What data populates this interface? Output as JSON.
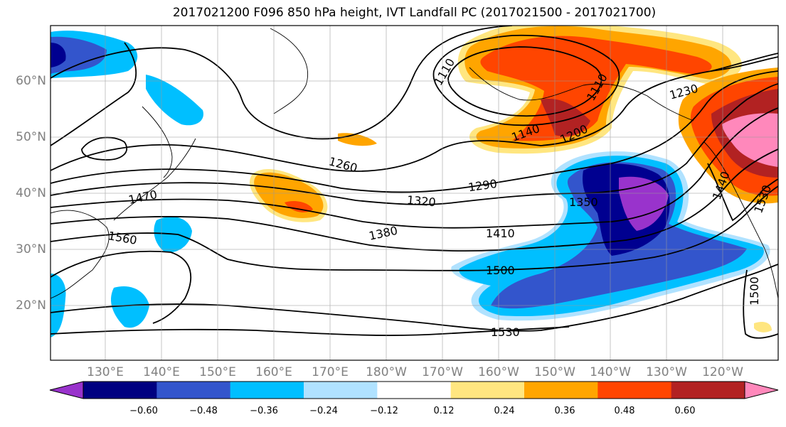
{
  "title": "2017021200 F096 850 hPa height, IVT Landfall PC (2017021500 - 2017021700)",
  "lat_ticks": [
    "60°N",
    "50°N",
    "40°N",
    "30°N",
    "20°N"
  ],
  "lon_ticks": [
    "130°E",
    "140°E",
    "150°E",
    "160°E",
    "170°E",
    "180°W",
    "170°W",
    "160°W",
    "150°W",
    "140°W",
    "130°W",
    "120°W"
  ],
  "contour_labels": [
    "1110",
    "1110",
    "1140",
    "1200",
    "1230",
    "1260",
    "1290",
    "1320",
    "1350",
    "1380",
    "1410",
    "1440",
    "1470",
    "1500",
    "1500",
    "1530",
    "1530",
    "1560"
  ],
  "colorbar": {
    "tick_labels": [
      "−0.60",
      "−0.48",
      "−0.36",
      "−0.24",
      "−0.12",
      "0.12",
      "0.24",
      "0.36",
      "0.48",
      "0.60"
    ],
    "colors": [
      "#9933cc",
      "#000080",
      "#3355cc",
      "#00bfff",
      "#b0e2ff",
      "#ffffff",
      "#ffe680",
      "#ffa500",
      "#ff4500",
      "#b22222",
      "#ff88bb"
    ]
  },
  "fill_colors": {
    "purple": "#9933cc",
    "navy": "#000090",
    "royal": "#3355cc",
    "sky": "#00bfff",
    "light": "#b0e2ff",
    "yellow": "#ffe680",
    "orange": "#ffa500",
    "red": "#ff4500",
    "darkred": "#b22222",
    "pink": "#ff88bb"
  }
}
